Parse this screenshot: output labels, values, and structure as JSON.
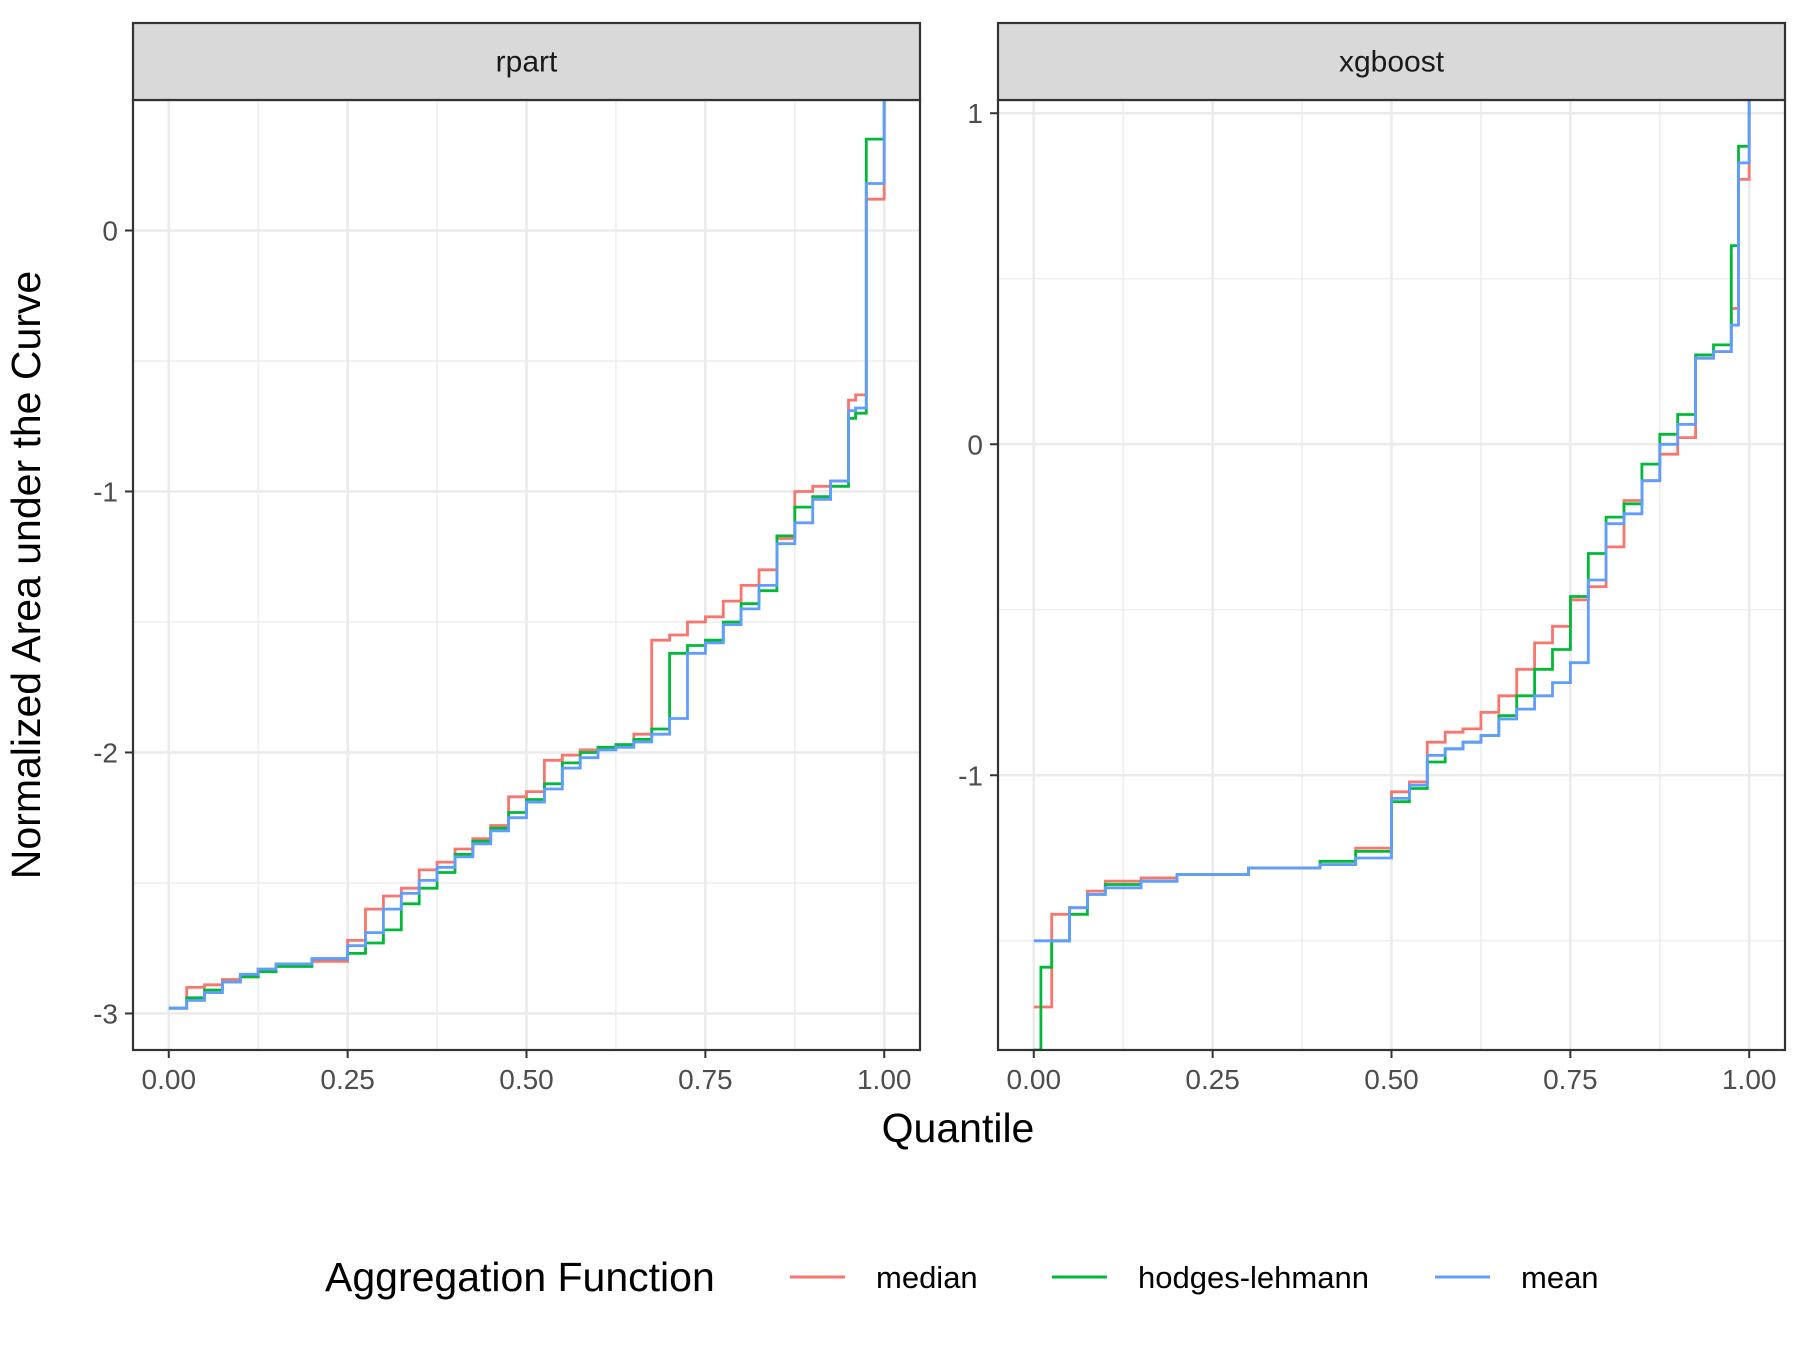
{
  "chart_data": {
    "type": "line",
    "subtype": "step",
    "xlabel": "Quantile",
    "ylabel": "Normalized Area under the Curve",
    "grid": true,
    "legend": {
      "title": "Aggregation Function",
      "position": "bottom",
      "entries": [
        "median",
        "hodges-lehmann",
        "mean"
      ]
    },
    "colors": {
      "median": "#F8766D",
      "hodges-lehmann": "#00BA38",
      "mean": "#619CFF"
    },
    "x_ticks": [
      "0.00",
      "0.25",
      "0.50",
      "0.75",
      "1.00"
    ],
    "xlim": [
      -0.05,
      1.05
    ],
    "panels": [
      {
        "strip": "rpart",
        "ylim": [
          -3.14,
          0.5
        ],
        "y_ticks": [
          "-3",
          "-2",
          "-1",
          "0"
        ],
        "y_tick_values": [
          -3,
          -2,
          -1,
          0
        ],
        "series": [
          {
            "name": "median",
            "x": [
              0,
              0.025,
              0.05,
              0.075,
              0.1,
              0.125,
              0.15,
              0.2,
              0.25,
              0.275,
              0.3,
              0.325,
              0.35,
              0.375,
              0.4,
              0.425,
              0.45,
              0.475,
              0.5,
              0.525,
              0.55,
              0.575,
              0.6,
              0.625,
              0.65,
              0.675,
              0.7,
              0.725,
              0.75,
              0.775,
              0.8,
              0.825,
              0.85,
              0.875,
              0.9,
              0.925,
              0.95,
              0.96,
              0.975,
              1.0
            ],
            "y": [
              -2.98,
              -2.9,
              -2.89,
              -2.87,
              -2.86,
              -2.83,
              -2.81,
              -2.8,
              -2.72,
              -2.6,
              -2.55,
              -2.52,
              -2.45,
              -2.42,
              -2.37,
              -2.33,
              -2.28,
              -2.17,
              -2.15,
              -2.03,
              -2.01,
              -1.99,
              -1.98,
              -1.97,
              -1.93,
              -1.57,
              -1.55,
              -1.5,
              -1.48,
              -1.42,
              -1.36,
              -1.3,
              -1.18,
              -1.0,
              -0.98,
              -0.96,
              -0.65,
              -0.63,
              0.12,
              0.55
            ]
          },
          {
            "name": "hodges-lehmann",
            "x": [
              0,
              0.025,
              0.05,
              0.075,
              0.1,
              0.125,
              0.15,
              0.2,
              0.25,
              0.275,
              0.3,
              0.325,
              0.35,
              0.375,
              0.4,
              0.425,
              0.45,
              0.475,
              0.5,
              0.525,
              0.55,
              0.575,
              0.6,
              0.625,
              0.65,
              0.675,
              0.7,
              0.725,
              0.75,
              0.775,
              0.8,
              0.825,
              0.85,
              0.875,
              0.9,
              0.925,
              0.95,
              0.96,
              0.975,
              1.0
            ],
            "y": [
              -2.98,
              -2.94,
              -2.91,
              -2.88,
              -2.86,
              -2.84,
              -2.82,
              -2.79,
              -2.77,
              -2.73,
              -2.68,
              -2.58,
              -2.52,
              -2.46,
              -2.39,
              -2.34,
              -2.29,
              -2.23,
              -2.18,
              -2.12,
              -2.04,
              -2.0,
              -1.98,
              -1.97,
              -1.95,
              -1.91,
              -1.62,
              -1.59,
              -1.57,
              -1.5,
              -1.43,
              -1.38,
              -1.17,
              -1.06,
              -1.02,
              -0.98,
              -0.72,
              -0.7,
              0.35,
              0.55
            ]
          },
          {
            "name": "mean",
            "x": [
              0,
              0.025,
              0.05,
              0.075,
              0.1,
              0.125,
              0.15,
              0.2,
              0.25,
              0.275,
              0.3,
              0.325,
              0.35,
              0.375,
              0.4,
              0.425,
              0.45,
              0.475,
              0.5,
              0.525,
              0.55,
              0.575,
              0.6,
              0.625,
              0.65,
              0.675,
              0.7,
              0.725,
              0.75,
              0.775,
              0.8,
              0.825,
              0.85,
              0.875,
              0.9,
              0.925,
              0.95,
              0.96,
              0.975,
              1.0
            ],
            "y": [
              -2.98,
              -2.95,
              -2.92,
              -2.88,
              -2.85,
              -2.83,
              -2.81,
              -2.79,
              -2.74,
              -2.69,
              -2.6,
              -2.54,
              -2.49,
              -2.44,
              -2.4,
              -2.35,
              -2.3,
              -2.25,
              -2.19,
              -2.14,
              -2.06,
              -2.02,
              -1.99,
              -1.98,
              -1.96,
              -1.93,
              -1.87,
              -1.62,
              -1.58,
              -1.51,
              -1.45,
              -1.36,
              -1.2,
              -1.12,
              -1.03,
              -0.96,
              -0.69,
              -0.68,
              0.18,
              0.55
            ]
          }
        ]
      },
      {
        "strip": "xgboost",
        "ylim": [
          -1.83,
          1.04
        ],
        "y_ticks": [
          "-1",
          "0",
          "1"
        ],
        "y_tick_values": [
          -1,
          0,
          1
        ],
        "series": [
          {
            "name": "median",
            "x": [
              0,
              0.025,
              0.05,
              0.075,
              0.1,
              0.15,
              0.2,
              0.3,
              0.4,
              0.45,
              0.5,
              0.525,
              0.55,
              0.575,
              0.6,
              0.625,
              0.65,
              0.675,
              0.7,
              0.725,
              0.75,
              0.775,
              0.8,
              0.825,
              0.85,
              0.875,
              0.9,
              0.925,
              0.95,
              0.975,
              0.985,
              1.0
            ],
            "y": [
              -1.7,
              -1.42,
              -1.4,
              -1.35,
              -1.32,
              -1.31,
              -1.3,
              -1.28,
              -1.27,
              -1.22,
              -1.05,
              -1.02,
              -0.9,
              -0.87,
              -0.86,
              -0.81,
              -0.76,
              -0.68,
              -0.6,
              -0.55,
              -0.47,
              -0.43,
              -0.31,
              -0.17,
              -0.11,
              -0.03,
              0.02,
              0.26,
              0.28,
              0.41,
              0.8,
              1.05
            ]
          },
          {
            "name": "hodges-lehmann",
            "x": [
              0,
              0.01,
              0.025,
              0.05,
              0.075,
              0.1,
              0.15,
              0.2,
              0.3,
              0.4,
              0.45,
              0.5,
              0.525,
              0.55,
              0.575,
              0.6,
              0.625,
              0.65,
              0.675,
              0.7,
              0.725,
              0.75,
              0.775,
              0.8,
              0.825,
              0.85,
              0.875,
              0.9,
              0.925,
              0.95,
              0.975,
              0.985,
              1.0
            ],
            "y": [
              -1.83,
              -1.58,
              -1.5,
              -1.42,
              -1.36,
              -1.33,
              -1.32,
              -1.3,
              -1.28,
              -1.26,
              -1.23,
              -1.08,
              -1.04,
              -0.96,
              -0.92,
              -0.9,
              -0.88,
              -0.82,
              -0.76,
              -0.68,
              -0.62,
              -0.46,
              -0.33,
              -0.22,
              -0.18,
              -0.06,
              0.03,
              0.09,
              0.27,
              0.3,
              0.6,
              0.9,
              1.05
            ]
          },
          {
            "name": "mean",
            "x": [
              0,
              0.05,
              0.075,
              0.1,
              0.15,
              0.2,
              0.3,
              0.4,
              0.45,
              0.5,
              0.525,
              0.55,
              0.575,
              0.6,
              0.625,
              0.65,
              0.675,
              0.7,
              0.725,
              0.75,
              0.775,
              0.8,
              0.825,
              0.85,
              0.875,
              0.9,
              0.925,
              0.95,
              0.975,
              0.985,
              1.0
            ],
            "y": [
              -1.5,
              -1.4,
              -1.36,
              -1.34,
              -1.32,
              -1.3,
              -1.28,
              -1.27,
              -1.25,
              -1.07,
              -1.03,
              -0.94,
              -0.92,
              -0.9,
              -0.88,
              -0.83,
              -0.8,
              -0.76,
              -0.72,
              -0.66,
              -0.41,
              -0.24,
              -0.21,
              -0.11,
              0.0,
              0.06,
              0.26,
              0.28,
              0.36,
              0.85,
              1.05
            ]
          }
        ]
      }
    ]
  }
}
